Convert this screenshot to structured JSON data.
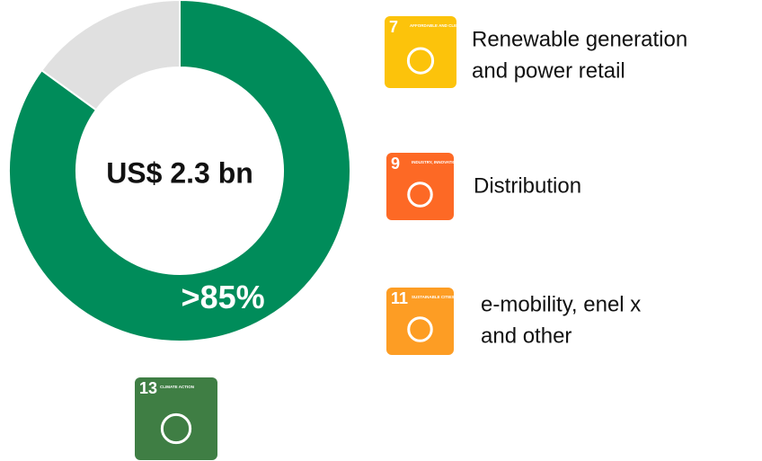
{
  "chart_data": {
    "type": "donut",
    "annotation": "US$ 2.3 bn",
    "values": [
      85,
      15
    ],
    "value_labels": [
      ">85%",
      null
    ],
    "colors": [
      "#008c5a",
      "#e0e0e0"
    ]
  },
  "legend": [
    {
      "number": "7",
      "title": "AFFORDABLE AND CLEAN ENERGY",
      "color": "#fcc30b",
      "lines": [
        "Renewable generation",
        "and power retail"
      ]
    },
    {
      "number": "9",
      "title": "INDUSTRY, INNOVATION AND INFRASTRUCTURE",
      "color": "#fd6925",
      "lines": [
        "Distribution"
      ]
    },
    {
      "number": "11",
      "title": "SUSTAINABLE CITIES AND COMMUNITIES",
      "color": "#fd9d24",
      "lines": [
        "e-mobility, enel x",
        "and other"
      ]
    }
  ],
  "badge": {
    "number": "13",
    "title": "CLIMATE ACTION",
    "color": "#3f7e44"
  }
}
